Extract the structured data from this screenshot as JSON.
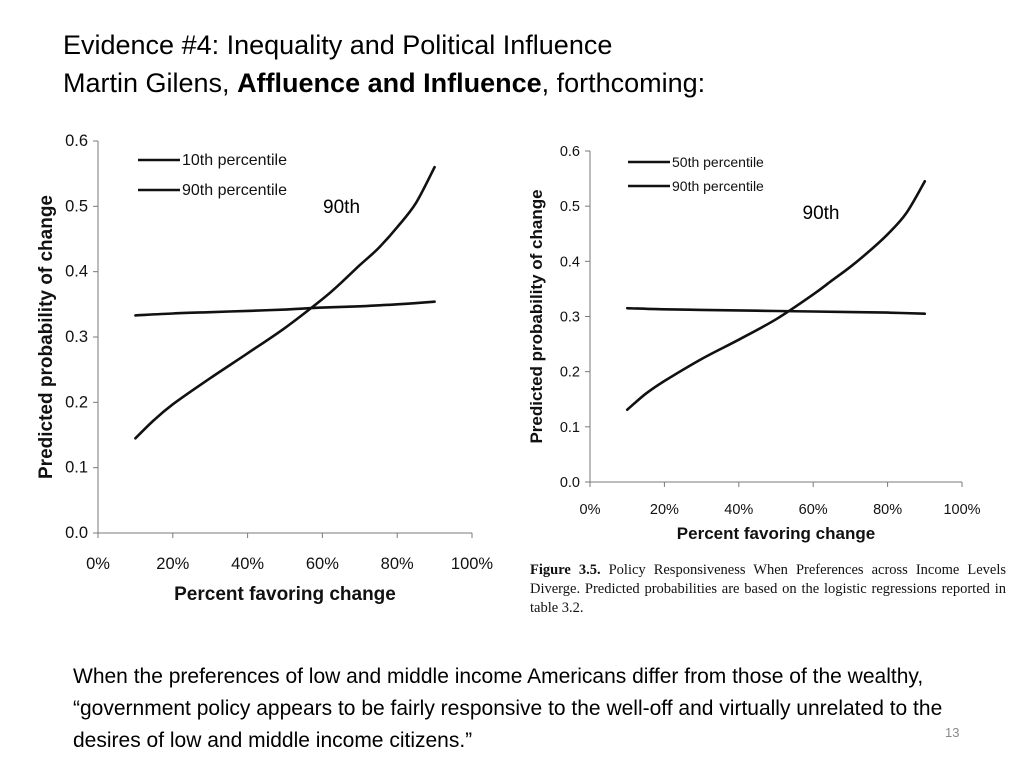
{
  "slide": {
    "title_line1": "Evidence #4: Inequality and Political Influence",
    "title_author": "Martin Gilens, ",
    "title_book": "Affluence and Influence",
    "title_suffix": ", forthcoming:",
    "caption_label": "Figure 3.5.",
    "caption_text": " Policy Responsiveness When Preferences across Income Levels Diverge. Predicted probabilities are based on the logistic regressions reported in table 3.2.",
    "quote": "When the preferences of low and middle income Americans differ from those of the wealthy, “government policy appears to be fairly responsive to the well-off and virtually unrelated to the desires of low and middle income citizens.”",
    "page_number": "13"
  },
  "chart_data": [
    {
      "type": "line",
      "xlabel": "Percent favoring change",
      "ylabel": "Predicted probability of change",
      "xlim": [
        0,
        100
      ],
      "ylim": [
        0,
        0.6
      ],
      "xticks": [
        "0%",
        "20%",
        "40%",
        "60%",
        "80%",
        "100%"
      ],
      "yticks": [
        "0.0",
        "0.1",
        "0.2",
        "0.3",
        "0.4",
        "0.5",
        "0.6"
      ],
      "legend_position": "top-left",
      "series": [
        {
          "name": "10th percentile",
          "x": [
            10,
            20,
            30,
            40,
            50,
            60,
            70,
            80,
            90
          ],
          "values": [
            0.333,
            0.336,
            0.338,
            0.34,
            0.342,
            0.345,
            0.347,
            0.35,
            0.354
          ]
        },
        {
          "name": "90th percentile",
          "x": [
            10,
            15,
            20,
            30,
            40,
            50,
            60,
            65,
            70,
            75,
            80,
            85,
            90
          ],
          "values": [
            0.145,
            0.173,
            0.197,
            0.237,
            0.275,
            0.314,
            0.358,
            0.383,
            0.41,
            0.436,
            0.468,
            0.505,
            0.56
          ]
        }
      ],
      "annotations": [
        {
          "text": "90th",
          "x": 69,
          "y": 0.47
        }
      ]
    },
    {
      "type": "line",
      "xlabel": "Percent favoring change",
      "ylabel": "Predicted probability of change",
      "xlim": [
        0,
        100
      ],
      "ylim": [
        0,
        0.6
      ],
      "xticks": [
        "0%",
        "20%",
        "40%",
        "60%",
        "80%",
        "100%"
      ],
      "yticks": [
        "0.0",
        "0.1",
        "0.2",
        "0.3",
        "0.4",
        "0.5",
        "0.6"
      ],
      "legend_position": "top-left",
      "series": [
        {
          "name": "50th percentile",
          "x": [
            10,
            20,
            30,
            40,
            50,
            60,
            70,
            80,
            90
          ],
          "values": [
            0.315,
            0.313,
            0.312,
            0.311,
            0.31,
            0.309,
            0.308,
            0.307,
            0.305
          ]
        },
        {
          "name": "90th percentile",
          "x": [
            10,
            15,
            20,
            30,
            40,
            50,
            60,
            65,
            70,
            75,
            80,
            85,
            90
          ],
          "values": [
            0.131,
            0.16,
            0.183,
            0.223,
            0.258,
            0.295,
            0.34,
            0.365,
            0.39,
            0.418,
            0.449,
            0.487,
            0.545
          ]
        }
      ],
      "annotations": [
        {
          "text": "90th",
          "x": 66,
          "y": 0.45
        }
      ]
    }
  ]
}
